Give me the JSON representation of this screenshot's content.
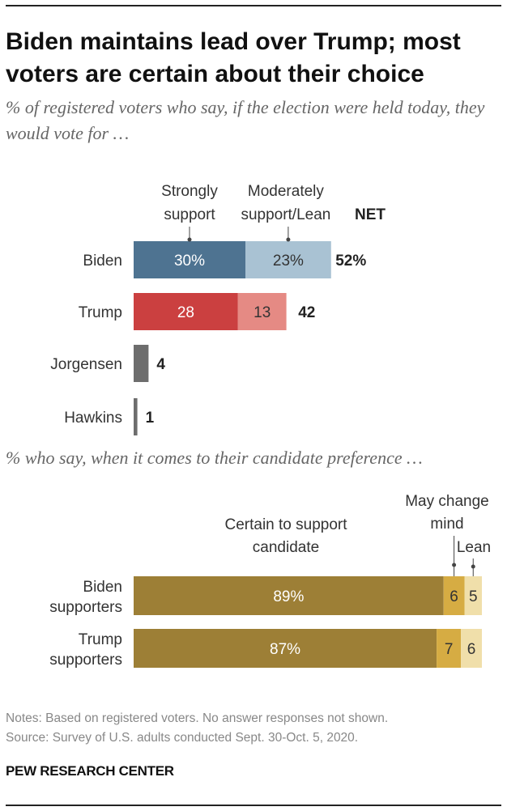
{
  "title": "Biden maintains lead over Trump; most voters are certain about their choice",
  "subtitle": "% of registered voters who say, if the election were held today, they would vote for …",
  "subtitle2": "% who say, when it comes to their candidate preference …",
  "notes": {
    "line1": "Notes: Based on registered voters. No answer responses not shown.",
    "line2": "Source: Survey of U.S. adults conducted Sept. 30-Oct. 5, 2020."
  },
  "source_org": "PEW RESEARCH CENTER",
  "colors": {
    "biden_strong": "#4e7391",
    "biden_moderate": "#a9c2d3",
    "trump_strong": "#cb4040",
    "trump_moderate": "#e58a84",
    "third_party": "#6d6d6d",
    "certain": "#9d7f36",
    "may_change": "#d6ac43",
    "lean": "#f0dfaa"
  },
  "chart_data": [
    {
      "type": "bar",
      "orientation": "horizontal",
      "stacked": true,
      "categories": [
        "Biden",
        "Trump",
        "Jorgensen",
        "Hawkins"
      ],
      "series": [
        {
          "name": "Strongly support",
          "values": [
            30,
            28,
            4,
            1
          ]
        },
        {
          "name": "Moderately support/Lean",
          "values": [
            23,
            13,
            0,
            0
          ]
        }
      ],
      "segment_labels": [
        [
          "30%",
          "23%"
        ],
        [
          "28",
          "13"
        ],
        [
          "",
          ""
        ],
        [
          "",
          ""
        ]
      ],
      "net": [
        52,
        42,
        4,
        1
      ],
      "net_labels": [
        "52%",
        "42",
        "4",
        "1"
      ],
      "net_header": "NET",
      "legend": [
        {
          "lines": [
            "Strongly",
            "support"
          ]
        },
        {
          "lines": [
            "Moderately",
            "support/Lean"
          ]
        }
      ],
      "xlim": [
        0,
        100
      ],
      "grid": false
    },
    {
      "type": "bar",
      "orientation": "horizontal",
      "stacked": true,
      "categories": [
        [
          "Biden",
          "supporters"
        ],
        [
          "Trump",
          "supporters"
        ]
      ],
      "series": [
        {
          "name": "Certain to support candidate",
          "values": [
            89,
            87
          ]
        },
        {
          "name": "May change mind",
          "values": [
            6,
            7
          ]
        },
        {
          "name": "Lean",
          "values": [
            5,
            6
          ]
        }
      ],
      "segment_labels": [
        [
          "89%",
          "6",
          "5"
        ],
        [
          "87%",
          "7",
          "6"
        ]
      ],
      "legend": [
        {
          "lines": [
            "Certain to support",
            "candidate"
          ]
        },
        {
          "lines": [
            "May change",
            "mind"
          ]
        },
        {
          "lines": [
            "Lean"
          ]
        }
      ],
      "xlim": [
        0,
        100
      ],
      "grid": false
    }
  ]
}
